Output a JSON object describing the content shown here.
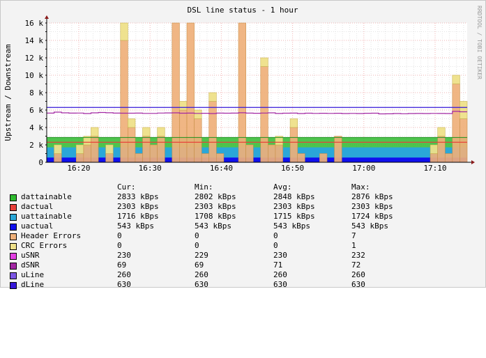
{
  "chart_data": {
    "type": "area",
    "title": "DSL line status - 1 hour",
    "ylabel": "Upstream / Downstream",
    "watermark": "RRDTOOL / TOBI OETIKER",
    "ylim": [
      0,
      16000
    ],
    "y_ticks": [
      0,
      2000,
      4000,
      6000,
      8000,
      10000,
      12000,
      14000,
      16000
    ],
    "y_tick_labels": [
      "0",
      "2 k",
      "4 k",
      "6 k",
      "8 k",
      "10 k",
      "12 k",
      "14 k",
      "16 k"
    ],
    "x_tick_labels": [
      "16:20",
      "16:30",
      "16:40",
      "16:50",
      "17:00",
      "17:10"
    ],
    "x_start": "16:15:30",
    "x_end": "17:14:30",
    "bin_minutes": 1,
    "series": [
      {
        "name": "dattainable",
        "color": "#2fba2f",
        "values": [
          2848
        ]
      },
      {
        "name": "dactual",
        "color": "#e8403a",
        "values": [
          2303
        ]
      },
      {
        "name": "uattainable",
        "color": "#2aa7d8",
        "values": [
          1715
        ]
      },
      {
        "name": "uactual",
        "color": "#1010ee",
        "values": [
          543
        ]
      },
      {
        "name": "Header Errors",
        "color": "#efb07a",
        "values": [
          0,
          1,
          0,
          0,
          1,
          2,
          3,
          0,
          1,
          0,
          14,
          4,
          1,
          3,
          2,
          3,
          0,
          16,
          6,
          16,
          5,
          1,
          7,
          1,
          0,
          0,
          16,
          2,
          0,
          11,
          2,
          2,
          0,
          4,
          1,
          0,
          0,
          1,
          0,
          3,
          0,
          0,
          0,
          0,
          0,
          0,
          0,
          0,
          0,
          0,
          0,
          0,
          1,
          3,
          1,
          9,
          5
        ]
      },
      {
        "name": "CRC Errors",
        "color": "#eee089",
        "values": [
          0,
          1,
          0,
          0,
          1,
          1,
          1,
          0,
          1,
          0,
          2,
          1,
          0,
          1,
          0,
          1,
          0,
          0,
          1,
          0,
          1,
          0,
          1,
          0,
          0,
          0,
          0,
          0,
          0,
          1,
          0,
          1,
          0,
          1,
          0,
          0,
          0,
          0,
          0,
          0,
          0,
          0,
          0,
          0,
          0,
          0,
          0,
          0,
          0,
          0,
          0,
          0,
          1,
          1,
          0,
          1,
          2
        ]
      },
      {
        "name": "uSNR",
        "color": "#e23fe2",
        "values": [
          230
        ]
      },
      {
        "name": "dSNR",
        "color": "#a227a2",
        "values": [
          5650,
          5760,
          5680,
          5650,
          5660,
          5600,
          5680,
          5720,
          5690,
          5650,
          5640,
          5640,
          5650,
          5620,
          5620,
          5660,
          5670,
          5680,
          5640,
          5650,
          5620,
          5630,
          5600,
          5650,
          5640,
          5650,
          5690,
          5650,
          5630,
          5660,
          5680,
          5610,
          5640,
          5650,
          5600,
          5640,
          5620,
          5630,
          5620,
          5630,
          5600,
          5620,
          5600,
          5630,
          5640,
          5560,
          5570,
          5600,
          5580,
          5600,
          5610,
          5600,
          5620,
          5610,
          5600,
          5850,
          5800
        ]
      },
      {
        "name": "uLine",
        "color": "#7b55e3",
        "values": [
          260
        ]
      },
      {
        "name": "dLine",
        "color": "#3517d8",
        "values": [
          630
        ]
      }
    ],
    "step_levels": {
      "dattainable": 2848,
      "dactual": 2303,
      "uattainable": 1715,
      "uactual": 543,
      "dLine": 6300
    },
    "legend_header": [
      "Cur:",
      "Min:",
      "Avg:",
      "Max:"
    ],
    "legend_rows": [
      {
        "name": "dattainable",
        "color": "#2fba2f",
        "cur": "2833 kBps",
        "min": "2802 kBps",
        "avg": "2848 kBps",
        "max": "2876 kBps"
      },
      {
        "name": "dactual",
        "color": "#e8403a",
        "cur": "2303 kBps",
        "min": "2303 kBps",
        "avg": "2303 kBps",
        "max": "2303 kBps"
      },
      {
        "name": "uattainable",
        "color": "#2aa7d8",
        "cur": "1716 kBps",
        "min": "1708 kBps",
        "avg": "1715 kBps",
        "max": "1724 kBps"
      },
      {
        "name": "uactual",
        "color": "#1010ee",
        "cur": "543 kBps",
        "min": "543 kBps",
        "avg": "543 kBps",
        "max": "543 kBps"
      },
      {
        "name": "Header Errors",
        "color": "#efb07a",
        "cur": "0",
        "min": "0",
        "avg": "0",
        "max": "7"
      },
      {
        "name": "CRC Errors",
        "color": "#eee089",
        "cur": "0",
        "min": "0",
        "avg": "0",
        "max": "1"
      },
      {
        "name": "uSNR",
        "color": "#e23fe2",
        "cur": "230",
        "min": "229",
        "avg": "230",
        "max": "232"
      },
      {
        "name": "dSNR",
        "color": "#a227a2",
        "cur": "69",
        "min": "69",
        "avg": "71",
        "max": "72"
      },
      {
        "name": "uLine",
        "color": "#7b55e3",
        "cur": "260",
        "min": "260",
        "avg": "260",
        "max": "260"
      },
      {
        "name": "dLine",
        "color": "#3517d8",
        "cur": "630",
        "min": "630",
        "avg": "630",
        "max": "630"
      }
    ]
  }
}
